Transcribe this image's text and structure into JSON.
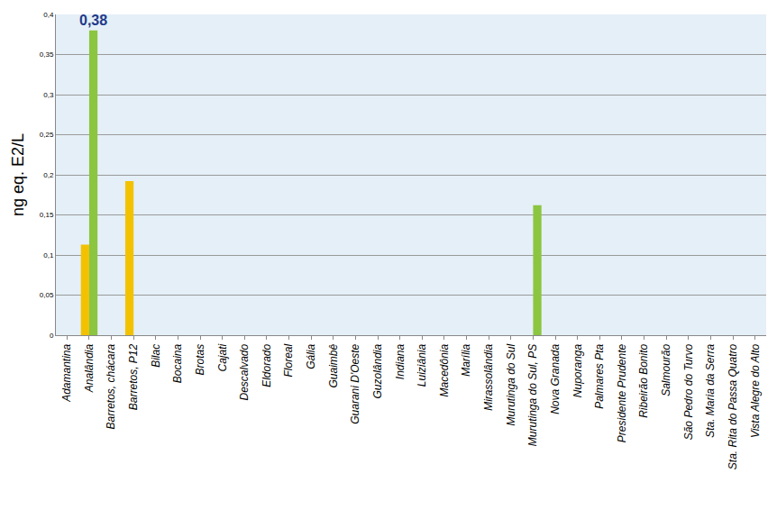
{
  "chart_data": {
    "type": "bar",
    "y_label": "ng eq. E2/L",
    "categories": [
      "Adamantina",
      "Analândia",
      "Barretos, chácara",
      "Barretos, P12",
      "Bilac",
      "Bocaina",
      "Brotas",
      "Cajati",
      "Descalvado",
      "Eldorado",
      "Floreal",
      "Gália",
      "Guaimbê",
      "Guarani D'Oeste",
      "Guzolândia",
      "Indiana",
      "Luiziânia",
      "Macedônia",
      "Marília",
      "Mirassolândia",
      "Murutinga do Sul",
      "Murutinga do Sul, PS",
      "Nova Granada",
      "Nuporanga",
      "Palmares Pta",
      "Presidente Prudente",
      "Ribeirão Bonito",
      "Salmourão",
      "São Pedro do Turvo",
      "Sta. Maria da Serra",
      "Sta. Rita do Passa Quatro",
      "Vista Alegre do Alto"
    ],
    "series": [
      {
        "color": "#f2c200",
        "values": [
          null,
          0.113,
          null,
          0.192,
          null,
          null,
          null,
          null,
          null,
          null,
          null,
          null,
          null,
          null,
          null,
          null,
          null,
          null,
          null,
          null,
          null,
          null,
          null,
          null,
          null,
          null,
          null,
          null,
          null,
          null,
          null,
          null
        ]
      },
      {
        "color": "#8cc540",
        "values": [
          null,
          0.38,
          null,
          null,
          null,
          null,
          null,
          null,
          null,
          null,
          null,
          null,
          null,
          null,
          null,
          null,
          null,
          null,
          null,
          null,
          null,
          0.162,
          null,
          null,
          null,
          null,
          null,
          null,
          null,
          null,
          null,
          null
        ]
      }
    ],
    "annotations": [
      {
        "text": "0,38",
        "category": "Analândia",
        "series": 1,
        "value": 0.38
      }
    ],
    "ylim": [
      0,
      0.4
    ],
    "yticks": [
      {
        "value": 0,
        "label": "0"
      },
      {
        "value": 0.05,
        "label": "0,05"
      },
      {
        "value": 0.1,
        "label": "0,1"
      },
      {
        "value": 0.15,
        "label": "0,15"
      },
      {
        "value": 0.2,
        "label": "0,2"
      },
      {
        "value": 0.25,
        "label": "0,25"
      },
      {
        "value": 0.3,
        "label": "0,3"
      },
      {
        "value": 0.35,
        "label": "0,35"
      },
      {
        "value": 0.4,
        "label": "0,4"
      }
    ],
    "grid": true
  }
}
